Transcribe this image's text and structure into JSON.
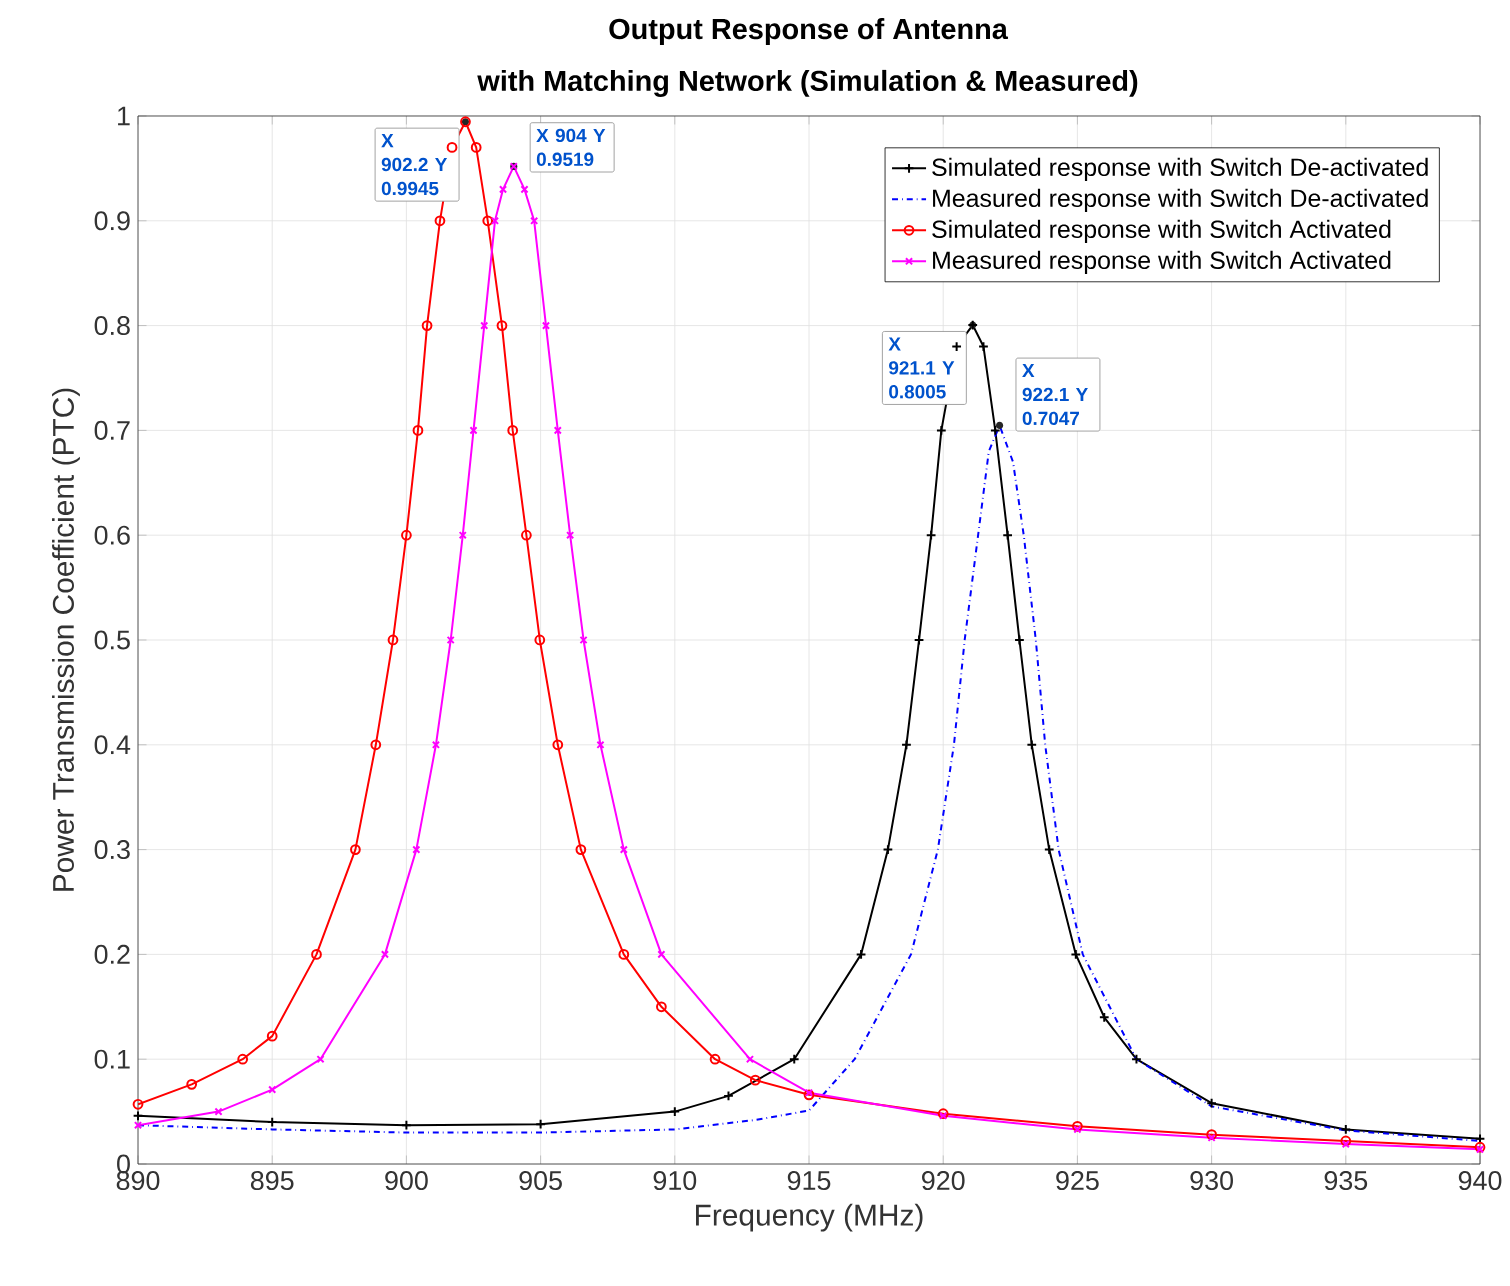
{
  "chart_data": {
    "type": "line",
    "title": "Output Response of Antenna",
    "subtitle": "with Matching Network (Simulation & Measured)",
    "xlabel": "Frequency (MHz)",
    "ylabel": "Power Transmission Coefficient (PTC)",
    "xlim": [
      890,
      940
    ],
    "ylim": [
      0,
      1
    ],
    "xticks": [
      890,
      895,
      900,
      905,
      910,
      915,
      920,
      925,
      930,
      935,
      940
    ],
    "yticks": [
      0,
      0.1,
      0.2,
      0.3,
      0.4,
      0.5,
      0.6,
      0.7,
      0.8,
      0.9,
      1
    ],
    "grid": true,
    "legend": "top right",
    "series": [
      {
        "name": "Simulated response with Switch De-activated",
        "color": "#000000",
        "marker": "plus",
        "line_style": "solid",
        "x": [
          890,
          895,
          900,
          905,
          910,
          912,
          914.45,
          916.94,
          917.94,
          918.63,
          919.1,
          919.55,
          919.93,
          920.5,
          921.1,
          921.5,
          921.94,
          922.4,
          922.84,
          923.3,
          923.95,
          924.94,
          926,
          927.2,
          930,
          935,
          940
        ],
        "values": [
          0.046,
          0.04,
          0.037,
          0.038,
          0.05,
          0.065,
          0.1,
          0.2,
          0.3,
          0.4,
          0.5,
          0.6,
          0.7,
          0.78,
          0.8005,
          0.78,
          0.7,
          0.6,
          0.5,
          0.4,
          0.3,
          0.2,
          0.14,
          0.1,
          0.058,
          0.033,
          0.024
        ]
      },
      {
        "name": "Measured response with Switch De-activated",
        "color": "#0000ff",
        "marker": "none",
        "line_style": "dashdot",
        "x": [
          890,
          895,
          900,
          905,
          910,
          913,
          915,
          916.7,
          918.8,
          919.8,
          920.4,
          920.8,
          921.3,
          921.7,
          922.1,
          922.6,
          923.0,
          923.45,
          923.8,
          924.3,
          925.2,
          927.2,
          930,
          935,
          940
        ],
        "values": [
          0.037,
          0.033,
          0.03,
          0.03,
          0.033,
          0.042,
          0.051,
          0.1,
          0.2,
          0.3,
          0.4,
          0.5,
          0.6,
          0.68,
          0.7047,
          0.67,
          0.6,
          0.5,
          0.4,
          0.3,
          0.2,
          0.1,
          0.055,
          0.032,
          0.022
        ]
      },
      {
        "name": "Simulated response with Switch Activated",
        "color": "#ff0000",
        "marker": "circle",
        "line_style": "solid",
        "x": [
          890,
          892,
          893.9,
          895,
          896.65,
          898.1,
          898.86,
          899.5,
          900,
          900.43,
          900.77,
          901.25,
          901.7,
          902.2,
          902.6,
          903.03,
          903.56,
          903.96,
          904.47,
          904.97,
          905.64,
          906.5,
          908.1,
          909.5,
          911.5,
          913,
          915,
          920,
          925,
          930,
          935,
          940
        ],
        "values": [
          0.057,
          0.076,
          0.1,
          0.122,
          0.2,
          0.3,
          0.4,
          0.5,
          0.6,
          0.7,
          0.8,
          0.9,
          0.97,
          0.9945,
          0.97,
          0.9,
          0.8,
          0.7,
          0.6,
          0.5,
          0.4,
          0.3,
          0.2,
          0.15,
          0.1,
          0.08,
          0.066,
          0.048,
          0.036,
          0.028,
          0.022,
          0.016
        ]
      },
      {
        "name": "Measured response with Switch Activated",
        "color": "#ff00ff",
        "marker": "cross",
        "line_style": "solid",
        "x": [
          890,
          893,
          895,
          896.8,
          899.2,
          900.37,
          901.1,
          901.65,
          902.1,
          902.5,
          902.9,
          903.3,
          903.6,
          904,
          904.4,
          904.76,
          905.2,
          905.64,
          906.1,
          906.6,
          907.23,
          908.1,
          909.5,
          912.8,
          915,
          920,
          925,
          930,
          935,
          940
        ],
        "values": [
          0.037,
          0.05,
          0.071,
          0.1,
          0.2,
          0.3,
          0.4,
          0.5,
          0.6,
          0.7,
          0.8,
          0.9,
          0.93,
          0.9519,
          0.93,
          0.9,
          0.8,
          0.7,
          0.6,
          0.5,
          0.4,
          0.3,
          0.2,
          0.1,
          0.068,
          0.046,
          0.033,
          0.025,
          0.019,
          0.014
        ]
      }
    ],
    "annotations": [
      {
        "text": "X 902.2 Y 0.9945",
        "x": 902.2,
        "y": 0.9945
      },
      {
        "text": "X 904 Y 0.9519",
        "x": 904,
        "y": 0.9519
      },
      {
        "text": "X 921.1 Y 0.8005",
        "x": 921.1,
        "y": 0.8005
      },
      {
        "text": "X 922.1 Y 0.7047",
        "x": 922.1,
        "y": 0.7047
      }
    ]
  }
}
